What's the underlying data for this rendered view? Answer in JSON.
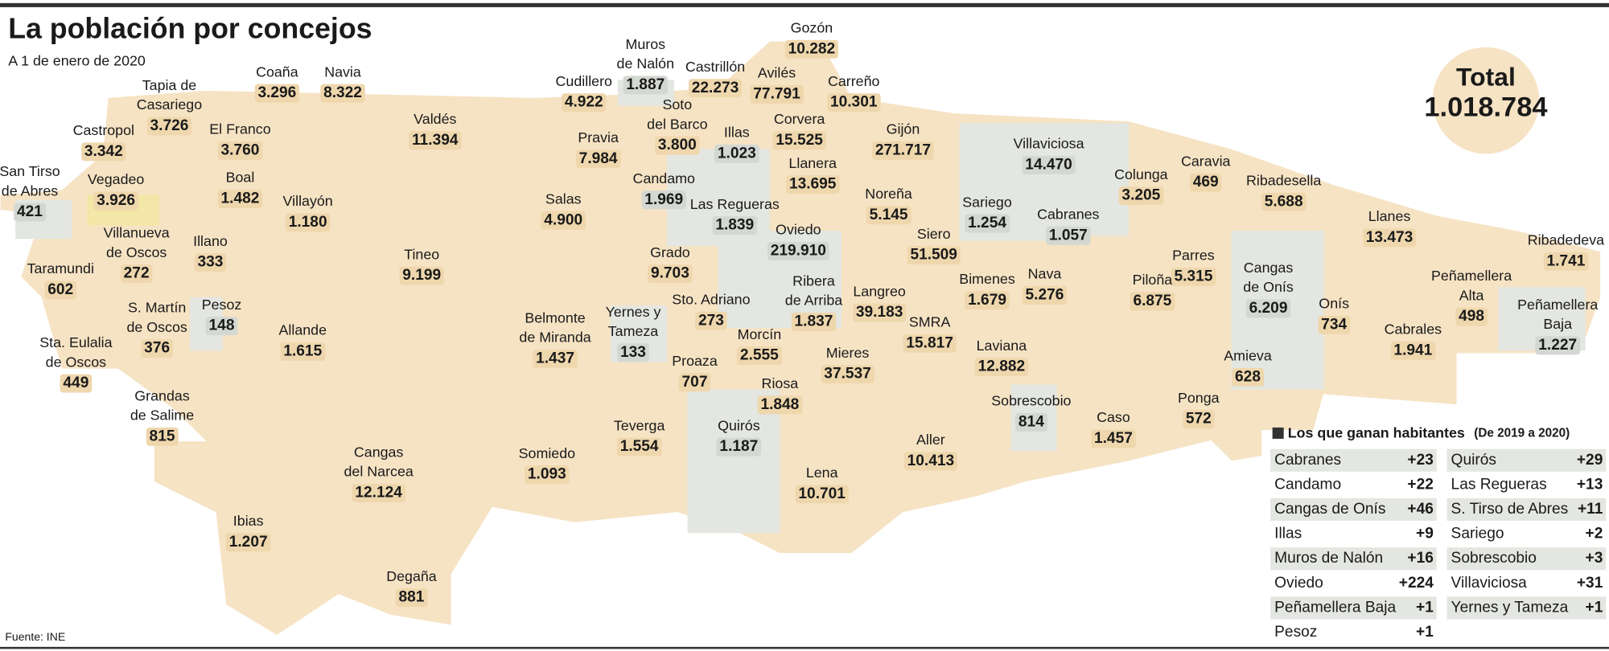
{
  "header": {
    "title": "La población por concejos",
    "subtitle": "A 1 de enero de 2020"
  },
  "total": {
    "label": "Total",
    "value": "1.018.784"
  },
  "municipalities": [
    {
      "name": [
        "Gozón"
      ],
      "population": "10.282"
    },
    {
      "name": [
        "Muros",
        "de Nalón"
      ],
      "population": "1.887"
    },
    {
      "name": [
        "Castrillón"
      ],
      "population": "22.273"
    },
    {
      "name": [
        "Avilés"
      ],
      "population": "77.791"
    },
    {
      "name": [
        "Carreño"
      ],
      "population": "10.301"
    },
    {
      "name": [
        "Cudillero"
      ],
      "population": "4.922"
    },
    {
      "name": [
        "Coaña"
      ],
      "population": "3.296"
    },
    {
      "name": [
        "Navia"
      ],
      "population": "8.322"
    },
    {
      "name": [
        "Tapia de",
        "Casariego"
      ],
      "population": "3.726"
    },
    {
      "name": [
        "Castropol"
      ],
      "population": "3.342"
    },
    {
      "name": [
        "El Franco"
      ],
      "population": "3.760"
    },
    {
      "name": [
        "Valdés"
      ],
      "population": "11.394"
    },
    {
      "name": [
        "Soto",
        "del Barco"
      ],
      "population": "3.800"
    },
    {
      "name": [
        "Pravia"
      ],
      "population": "7.984"
    },
    {
      "name": [
        "Illas"
      ],
      "population": "1.023"
    },
    {
      "name": [
        "Corvera"
      ],
      "population": "15.525"
    },
    {
      "name": [
        "Gijón"
      ],
      "population": "271.717"
    },
    {
      "name": [
        "Villaviciosa"
      ],
      "population": "14.470"
    },
    {
      "name": [
        "Llanera"
      ],
      "population": "13.695"
    },
    {
      "name": [
        "San Tirso",
        "de Abres"
      ],
      "population": "421"
    },
    {
      "name": [
        "Vegadeo"
      ],
      "population": "3.926"
    },
    {
      "name": [
        "Boal"
      ],
      "population": "1.482"
    },
    {
      "name": [
        "Villayón"
      ],
      "population": "1.180"
    },
    {
      "name": [
        "Candamo"
      ],
      "population": "1.969"
    },
    {
      "name": [
        "Salas"
      ],
      "population": "4.900"
    },
    {
      "name": [
        "Las Regueras"
      ],
      "population": "1.839"
    },
    {
      "name": [
        "Noreña"
      ],
      "population": "5.145"
    },
    {
      "name": [
        "Colunga"
      ],
      "population": "3.205"
    },
    {
      "name": [
        "Caravia"
      ],
      "population": "469"
    },
    {
      "name": [
        "Ribadesella"
      ],
      "population": "5.688"
    },
    {
      "name": [
        "Sariego"
      ],
      "population": "1.254"
    },
    {
      "name": [
        "Cabranes"
      ],
      "population": "1.057"
    },
    {
      "name": [
        "Siero"
      ],
      "population": "51.509"
    },
    {
      "name": [
        "Oviedo"
      ],
      "population": "219.910"
    },
    {
      "name": [
        "Villanueva",
        "de Oscos"
      ],
      "population": "272"
    },
    {
      "name": [
        "Illano"
      ],
      "population": "333"
    },
    {
      "name": [
        "Tineo"
      ],
      "population": "9.199"
    },
    {
      "name": [
        "Grado"
      ],
      "population": "9.703"
    },
    {
      "name": [
        "Ribera",
        "de Arriba"
      ],
      "population": "1.837"
    },
    {
      "name": [
        "Langreo"
      ],
      "population": "39.183"
    },
    {
      "name": [
        "Llanes"
      ],
      "population": "13.473"
    },
    {
      "name": [
        "Ribadedeva"
      ],
      "population": "1.741"
    },
    {
      "name": [
        "Parres"
      ],
      "population": "5.315"
    },
    {
      "name": [
        "Cangas",
        "de Onís"
      ],
      "population": "6.209"
    },
    {
      "name": [
        "Bimenes"
      ],
      "population": "1.679"
    },
    {
      "name": [
        "Nava"
      ],
      "population": "5.276"
    },
    {
      "name": [
        "Piloña"
      ],
      "population": "6.875"
    },
    {
      "name": [
        "Peñamellera",
        "Alta"
      ],
      "population": "498"
    },
    {
      "name": [
        "Peñamellera",
        "Baja"
      ],
      "population": "1.227"
    },
    {
      "name": [
        "Onís"
      ],
      "population": "734"
    },
    {
      "name": [
        "Taramundi"
      ],
      "population": "602"
    },
    {
      "name": [
        "S. Martín",
        "de Oscos"
      ],
      "population": "376"
    },
    {
      "name": [
        "Pesoz"
      ],
      "population": "148"
    },
    {
      "name": [
        "Allande"
      ],
      "population": "1.615"
    },
    {
      "name": [
        "Belmonte",
        "de Miranda"
      ],
      "population": "1.437"
    },
    {
      "name": [
        "Yernes y",
        "Tameza"
      ],
      "population": "133"
    },
    {
      "name": [
        "Sto. Adriano"
      ],
      "population": "273"
    },
    {
      "name": [
        "Morcín"
      ],
      "population": "2.555"
    },
    {
      "name": [
        "SMRA"
      ],
      "population": "15.817"
    },
    {
      "name": [
        "Laviana"
      ],
      "population": "12.882"
    },
    {
      "name": [
        "Cabrales"
      ],
      "population": "1.941"
    },
    {
      "name": [
        "Sta. Eulalia",
        "de Oscos"
      ],
      "population": "449"
    },
    {
      "name": [
        "Proaza"
      ],
      "population": "707"
    },
    {
      "name": [
        "Mieres"
      ],
      "population": "37.537"
    },
    {
      "name": [
        "Amieva"
      ],
      "population": "628"
    },
    {
      "name": [
        "Riosa"
      ],
      "population": "1.848"
    },
    {
      "name": [
        "Grandas",
        "de Salime"
      ],
      "population": "815"
    },
    {
      "name": [
        "Sobrescobio"
      ],
      "population": "814"
    },
    {
      "name": [
        "Ponga"
      ],
      "population": "572"
    },
    {
      "name": [
        "Teverga"
      ],
      "population": "1.554"
    },
    {
      "name": [
        "Quirós"
      ],
      "population": "1.187"
    },
    {
      "name": [
        "Caso"
      ],
      "population": "1.457"
    },
    {
      "name": [
        "Aller"
      ],
      "population": "10.413"
    },
    {
      "name": [
        "Somiedo"
      ],
      "population": "1.093"
    },
    {
      "name": [
        "Cangas",
        "del Narcea"
      ],
      "population": "12.124"
    },
    {
      "name": [
        "Lena"
      ],
      "population": "10.701"
    },
    {
      "name": [
        "Ibias"
      ],
      "population": "1.207"
    },
    {
      "name": [
        "Degaña"
      ],
      "population": "881"
    }
  ],
  "gainers": {
    "title": "Los que ganan habitantes",
    "note": "(De 2019 a 2020)",
    "columns": [
      [
        [
          "Cabranes",
          "+23"
        ],
        [
          "Candamo",
          "+22"
        ],
        [
          "Cangas de Onís",
          "+46"
        ],
        [
          "Illas",
          "+9"
        ],
        [
          "Muros de Nalón",
          "+16"
        ],
        [
          "Oviedo",
          "+224"
        ],
        [
          "Peñamellera Baja",
          "+1"
        ],
        [
          "Pesoz",
          "+1"
        ]
      ],
      [
        [
          "Quirós",
          "+29"
        ],
        [
          "Las Regueras",
          "+13"
        ],
        [
          "S. Tirso de Abres",
          "+11"
        ],
        [
          "Sariego",
          "+2"
        ],
        [
          "Sobrescobio",
          "+3"
        ],
        [
          "Villaviciosa",
          "+31"
        ],
        [
          "Yernes y Tameza",
          "+1"
        ]
      ]
    ]
  },
  "source": "Fuente: INE"
}
